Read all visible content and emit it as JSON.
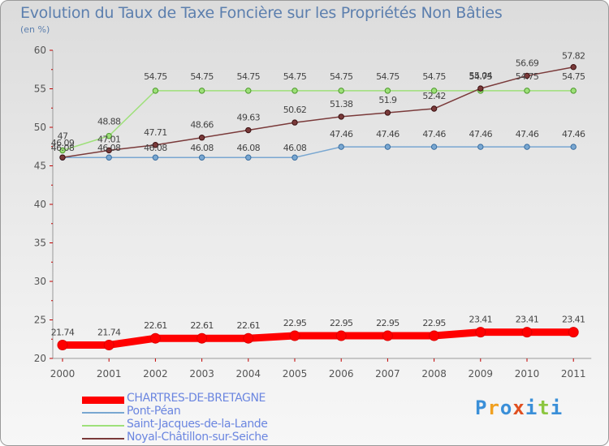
{
  "header": {
    "title": "Evolution du Taux de Taxe Foncière sur les Propriétés Non Bâties",
    "subtitle": "(en %)"
  },
  "chart_data": {
    "type": "line",
    "title": "Evolution du Taux de Taxe Foncière sur les Propriétés Non Bâties",
    "ylabel": "(en %)",
    "xlabel": "",
    "categories": [
      "2000",
      "2001",
      "2002",
      "2003",
      "2004",
      "2005",
      "2006",
      "2007",
      "2008",
      "2009",
      "2010",
      "2011"
    ],
    "ylim": [
      20,
      60
    ],
    "yticks": [
      20,
      25,
      30,
      35,
      40,
      45,
      50,
      55,
      60
    ],
    "grid": false,
    "legend": "bottom-left",
    "series": [
      {
        "name": "CHARTRES-DE-BRETAGNE",
        "values": [
          21.74,
          21.74,
          22.61,
          22.61,
          22.61,
          22.95,
          22.95,
          22.95,
          22.95,
          23.41,
          23.41,
          23.41
        ],
        "labels": [
          "21.74",
          "21.74",
          "22.61",
          "22.61",
          "22.61",
          "22.95",
          "22.95",
          "22.95",
          "22.95",
          "23.41",
          "23.41",
          "23.41"
        ],
        "color": "#ff0000"
      },
      {
        "name": "Pont-Péan",
        "values": [
          46.08,
          46.08,
          46.08,
          46.08,
          46.08,
          46.08,
          47.46,
          47.46,
          47.46,
          47.46,
          47.46,
          47.46
        ],
        "labels": [
          "46.08",
          "46.08",
          "46.08",
          "46.08",
          "46.08",
          "46.08",
          "47.46",
          "47.46",
          "47.46",
          "47.46",
          "47.46",
          "47.46"
        ],
        "color": "#79a7d1"
      },
      {
        "name": "Saint-Jacques-de-la-Lande",
        "values": [
          47,
          48.88,
          54.75,
          54.75,
          54.75,
          54.75,
          54.75,
          54.75,
          54.75,
          54.75,
          54.75,
          54.75
        ],
        "labels": [
          "47",
          "48.88",
          "54.75",
          "54.75",
          "54.75",
          "54.75",
          "54.75",
          "54.75",
          "54.75",
          "54.75",
          "54.75",
          "54.75"
        ],
        "color": "#9ee07a"
      },
      {
        "name": "Noyal-Châtillon-sur-Seiche",
        "values": [
          46.09,
          47.01,
          47.71,
          48.66,
          49.63,
          50.62,
          51.38,
          51.9,
          52.42,
          55.04,
          56.69,
          57.82
        ],
        "labels": [
          "46.09",
          "47.01",
          "47.71",
          "48.66",
          "49.63",
          "50.62",
          "51.38",
          "51.9",
          "52.42",
          "55.04",
          "56.69",
          "57.82"
        ],
        "color": "#7a3a3a"
      }
    ]
  },
  "brand": {
    "text": "Proxiti",
    "colors": [
      "#3a8fd8",
      "#f0a020",
      "#3a8fd8",
      "#e05020",
      "#3a8fd8",
      "#8cc63f",
      "#3a8fd8"
    ]
  }
}
